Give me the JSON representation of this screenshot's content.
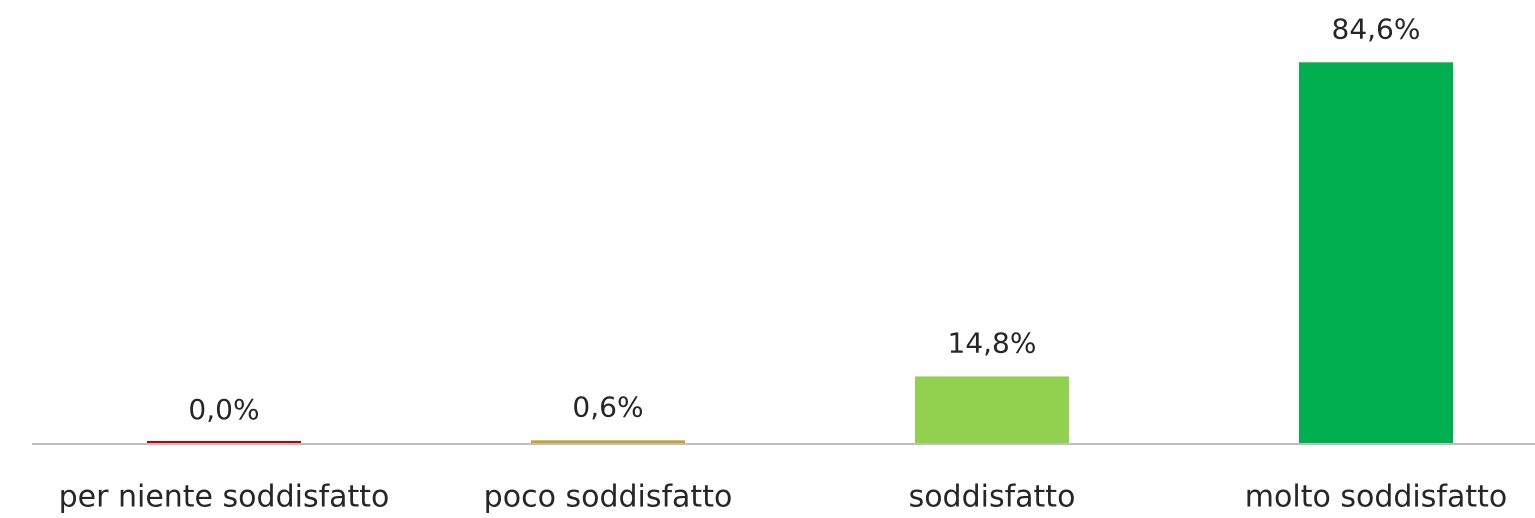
{
  "chart_data": {
    "type": "bar",
    "categories": [
      "per niente soddisfatto",
      "poco soddisfatto",
      "soddisfatto",
      "molto soddisfatto"
    ],
    "values": [
      0.0,
      0.6,
      14.8,
      84.6
    ],
    "value_labels": [
      "0,0%",
      "0,6%",
      "14,8%",
      "84,6%"
    ],
    "colors": [
      "#c00000",
      "#c9a227",
      "#92d050",
      "#00b050"
    ]
  }
}
